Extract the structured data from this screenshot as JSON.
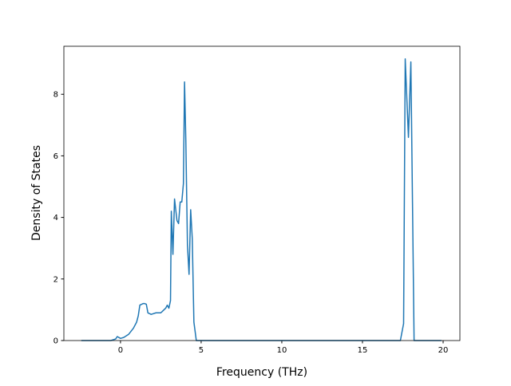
{
  "chart_data": {
    "type": "line",
    "x_label": "Frequency (THz)",
    "y_label": "Density of States",
    "xlim": [
      -3.51,
      21.04
    ],
    "ylim": [
      0,
      9.56
    ],
    "xticks": [
      0,
      5,
      10,
      15,
      20
    ],
    "yticks": [
      0,
      2,
      4,
      6,
      8
    ],
    "series": [
      {
        "color": "#1f77b4",
        "x": [
          -2.43,
          -0.6,
          -0.3,
          -0.2,
          0,
          0.2,
          0.5,
          0.8,
          1.0,
          1.1,
          1.2,
          1.4,
          1.5,
          1.6,
          1.7,
          1.9,
          2.2,
          2.5,
          2.6,
          2.8,
          2.9,
          3.0,
          3.1,
          3.15,
          3.25,
          3.35,
          3.5,
          3.6,
          3.7,
          3.8,
          3.9,
          3.97,
          4.05,
          4.15,
          4.25,
          4.35,
          4.45,
          4.55,
          4.7,
          17.35,
          17.55,
          17.65,
          17.85,
          18.0,
          18.2,
          19.9
        ],
        "values": [
          0,
          0,
          0.05,
          0.13,
          0.07,
          0.1,
          0.2,
          0.4,
          0.6,
          0.8,
          1.15,
          1.2,
          1.2,
          1.18,
          0.9,
          0.85,
          0.9,
          0.9,
          0.95,
          1.05,
          1.15,
          1.05,
          1.3,
          4.2,
          2.8,
          4.6,
          3.9,
          3.8,
          4.5,
          4.5,
          5.1,
          8.4,
          6.5,
          3.1,
          2.15,
          4.25,
          3.3,
          0.6,
          0,
          0,
          0.55,
          9.15,
          6.6,
          9.05,
          0,
          0
        ]
      }
    ]
  }
}
